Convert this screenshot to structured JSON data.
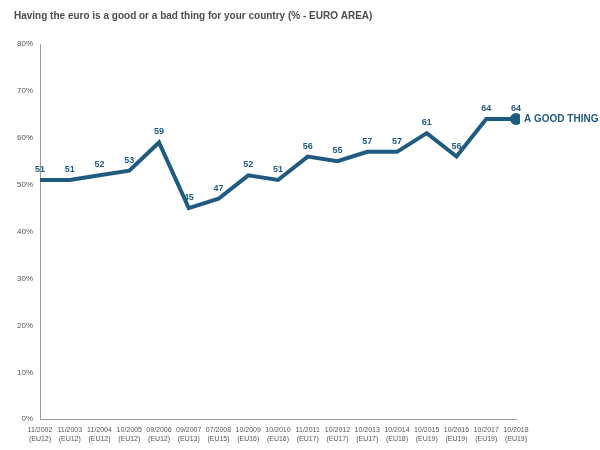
{
  "chart_data": {
    "type": "line",
    "title": "Having the euro is a good or a bad thing for your country (% - EURO AREA)",
    "categories": [
      [
        "11/2002",
        "(EU12)"
      ],
      [
        "11/2003",
        "(EU12)"
      ],
      [
        "11/2004",
        "(EU12)"
      ],
      [
        "10/2005",
        "(EU12)"
      ],
      [
        "09/2006",
        "(EU12)"
      ],
      [
        "09/2007",
        "(EU13)"
      ],
      [
        "07/2008",
        "(EU15)"
      ],
      [
        "10/2009",
        "(EU16)"
      ],
      [
        "10/2010",
        "(EU16)"
      ],
      [
        "11/2011",
        "(EU17)"
      ],
      [
        "10/2012",
        "(EU17)"
      ],
      [
        "10/2013",
        "(EU17)"
      ],
      [
        "10/2014",
        "(EU18)"
      ],
      [
        "10/2015",
        "(EU19)"
      ],
      [
        "10/2016",
        "(EU19)"
      ],
      [
        "10/2017",
        "(EU19)"
      ],
      [
        "10/2018",
        "(EU19)"
      ]
    ],
    "series": [
      {
        "name": "A GOOD THING",
        "color": "#1f5b80",
        "values": [
          51,
          51,
          52,
          53,
          59,
          45,
          47,
          52,
          51,
          56,
          55,
          57,
          57,
          61,
          56,
          64,
          64
        ]
      }
    ],
    "ylim": [
      0,
      80
    ],
    "yticks": [
      {
        "value": 0,
        "label": "0%"
      },
      {
        "value": 10,
        "label": "10%"
      },
      {
        "value": 20,
        "label": "20%"
      },
      {
        "value": 30,
        "label": "30%"
      },
      {
        "value": 40,
        "label": "40%"
      },
      {
        "value": 50,
        "label": "50%"
      },
      {
        "value": 60,
        "label": "60%"
      },
      {
        "value": 70,
        "label": "70%"
      },
      {
        "value": 80,
        "label": "80%"
      }
    ],
    "grid": false,
    "data_labels": true
  }
}
